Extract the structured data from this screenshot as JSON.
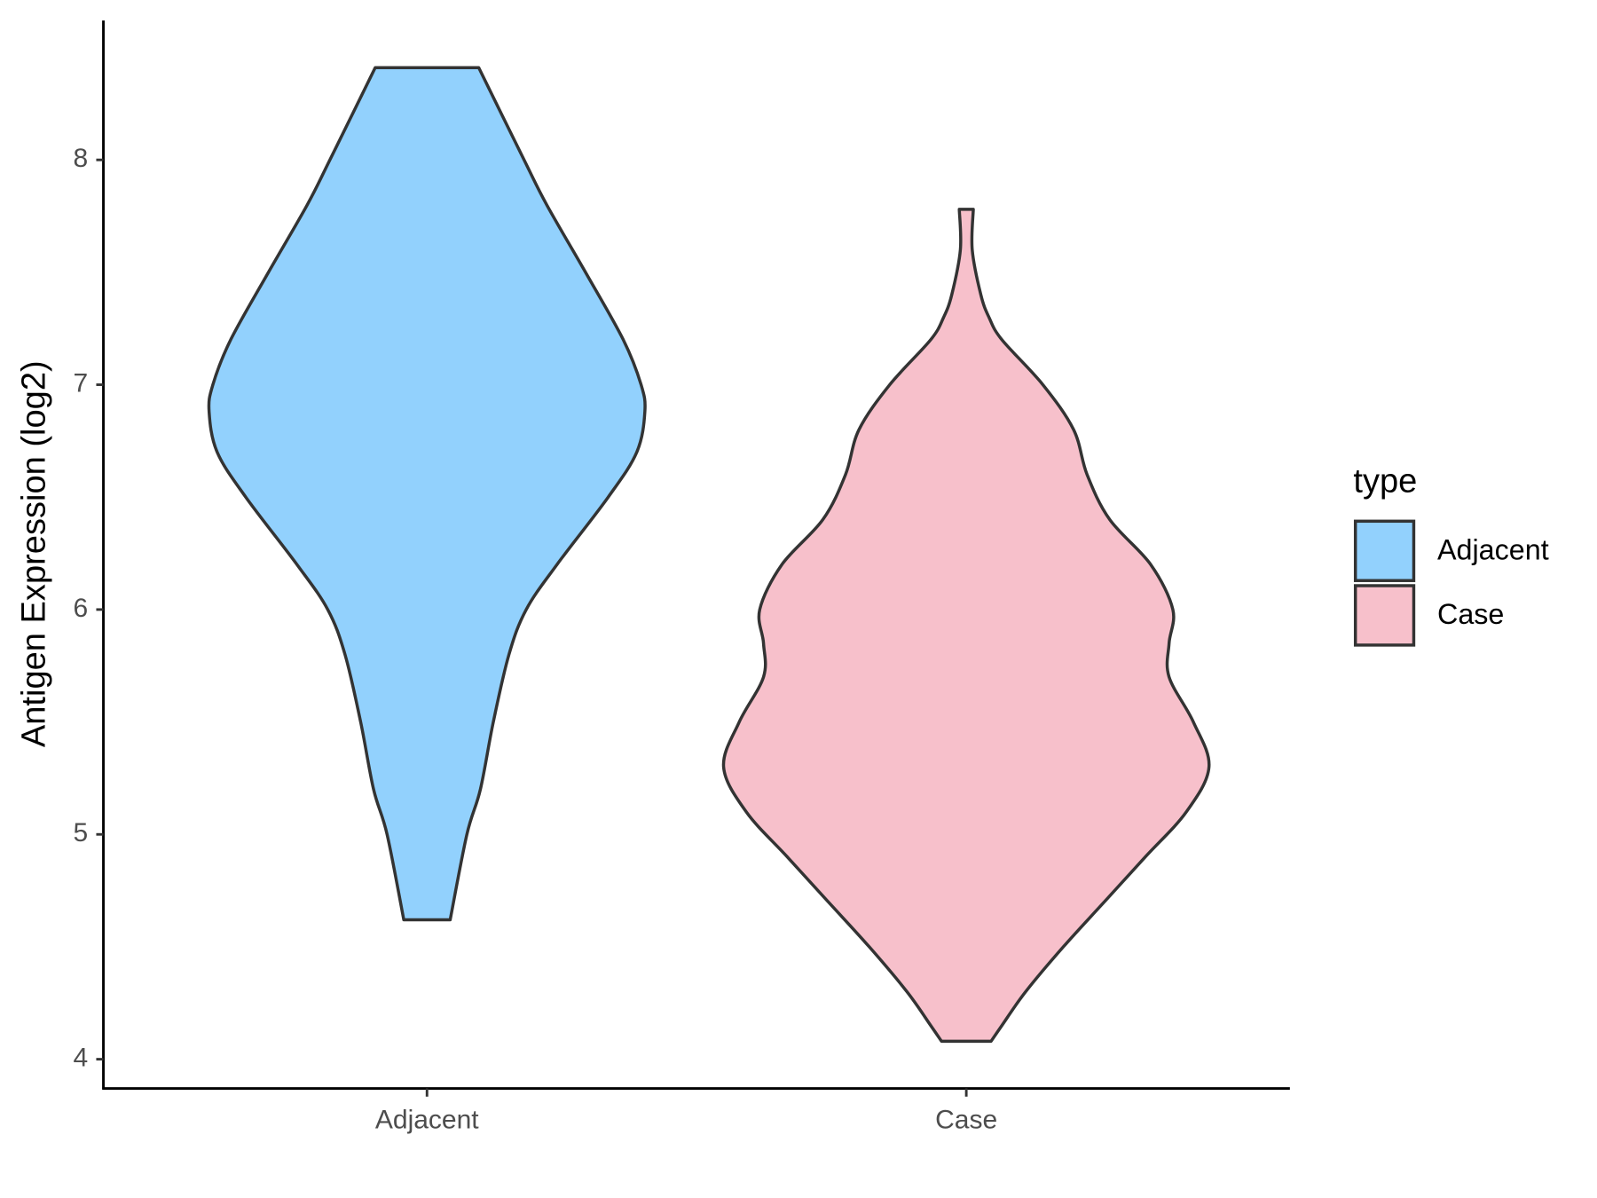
{
  "chart_data": {
    "type": "violin",
    "y_label": "Antigen Expression (log2)",
    "categories": [
      "Adjacent",
      "Case"
    ],
    "series": [
      {
        "name": "Adjacent",
        "color": "#92d1fd",
        "y": [
          4.62,
          5.0,
          5.2,
          5.5,
          5.8,
          6.0,
          6.2,
          6.5,
          6.7,
          6.88,
          7.0,
          7.2,
          7.5,
          7.8,
          8.0,
          8.41
        ],
        "half_widths": [
          0.043,
          0.074,
          0.099,
          0.123,
          0.152,
          0.184,
          0.241,
          0.336,
          0.389,
          0.404,
          0.397,
          0.364,
          0.294,
          0.222,
          0.18,
          0.096
        ]
      },
      {
        "name": "Case",
        "color": "#f7c0cb",
        "y": [
          4.08,
          4.15,
          4.3,
          4.5,
          4.7,
          4.9,
          5.1,
          5.3,
          5.5,
          5.7,
          5.85,
          6.0,
          6.2,
          6.4,
          6.6,
          6.8,
          7.0,
          7.2,
          7.3,
          7.4,
          7.6,
          7.78
        ],
        "half_widths": [
          0.046,
          0.066,
          0.11,
          0.18,
          0.256,
          0.332,
          0.408,
          0.45,
          0.421,
          0.376,
          0.376,
          0.383,
          0.342,
          0.266,
          0.224,
          0.199,
          0.142,
          0.066,
          0.042,
          0.027,
          0.011,
          0.013
        ]
      }
    ],
    "ylim": [
      3.87,
      8.62
    ],
    "yticks": [
      4,
      5,
      6,
      7,
      8
    ],
    "legend_title": "type",
    "legend_position": "right"
  }
}
